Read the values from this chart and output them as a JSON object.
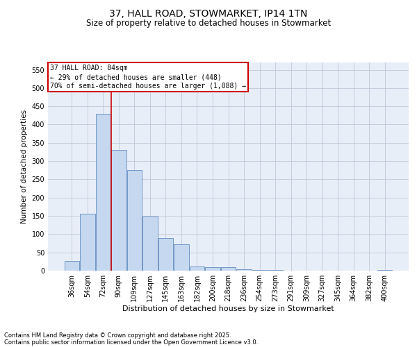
{
  "title": "37, HALL ROAD, STOWMARKET, IP14 1TN",
  "subtitle": "Size of property relative to detached houses in Stowmarket",
  "xlabel": "Distribution of detached houses by size in Stowmarket",
  "ylabel": "Number of detached properties",
  "categories": [
    "36sqm",
    "54sqm",
    "72sqm",
    "90sqm",
    "109sqm",
    "127sqm",
    "145sqm",
    "163sqm",
    "182sqm",
    "200sqm",
    "218sqm",
    "236sqm",
    "254sqm",
    "273sqm",
    "291sqm",
    "309sqm",
    "327sqm",
    "345sqm",
    "364sqm",
    "382sqm",
    "400sqm"
  ],
  "values": [
    27,
    155,
    430,
    330,
    275,
    148,
    90,
    72,
    12,
    10,
    10,
    3,
    2,
    1,
    0,
    0,
    0,
    0,
    0,
    0,
    2
  ],
  "bar_color": "#c5d8f0",
  "bar_edge_color": "#4a7ab5",
  "annotation_text_line1": "37 HALL ROAD: 84sqm",
  "annotation_text_line2": "← 29% of detached houses are smaller (448)",
  "annotation_text_line3": "70% of semi-detached houses are larger (1,088) →",
  "annotation_box_color": "#ffffff",
  "annotation_box_edge_color": "#cc0000",
  "vline_color": "#cc0000",
  "vline_x": 2.5,
  "ylim": [
    0,
    570
  ],
  "yticks": [
    0,
    50,
    100,
    150,
    200,
    250,
    300,
    350,
    400,
    450,
    500,
    550
  ],
  "grid_color": "#c0c8d8",
  "background_color": "#e8eef8",
  "footer_line1": "Contains HM Land Registry data © Crown copyright and database right 2025.",
  "footer_line2": "Contains public sector information licensed under the Open Government Licence v3.0.",
  "title_fontsize": 10,
  "subtitle_fontsize": 8.5,
  "xlabel_fontsize": 8,
  "ylabel_fontsize": 7.5,
  "tick_fontsize": 7,
  "annotation_fontsize": 7,
  "footer_fontsize": 6
}
